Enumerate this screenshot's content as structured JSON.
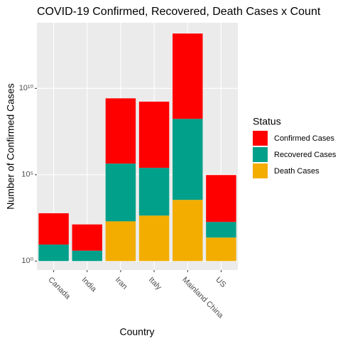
{
  "chart_data": {
    "type": "bar",
    "stacked": true,
    "log_scale": true,
    "grid": true,
    "title": "COVID-19 Confirmed, Recovered, Death Cases x Count",
    "x_label": "Country",
    "y_label": "Number of Confirmed Cases",
    "legend_title": "Status",
    "legend": "right",
    "categories": [
      "Canada",
      "India",
      "Iran",
      "Italy",
      "Mainland China",
      "US"
    ],
    "series": [
      {
        "name": "Confirmed Cases",
        "color": "#ff0000",
        "values": [
          65,
          33,
          6000,
          6800,
          87000,
          520
        ]
      },
      {
        "name": "Recovered Cases",
        "color": "#00a08a",
        "values": [
          9,
          4,
          2200,
          580,
          49000,
          8
        ]
      },
      {
        "name": "Death Cases",
        "color": "#f2ad00",
        "values": [
          null,
          null,
          200,
          430,
          3500,
          23
        ]
      }
    ],
    "ylim": [
      0.3,
      63000000000000
    ],
    "yticks": [
      {
        "value": 1,
        "label": "10⁰"
      },
      {
        "value": 100000,
        "label": "10⁵"
      },
      {
        "value": 10000000000,
        "label": "10¹⁰"
      }
    ]
  }
}
